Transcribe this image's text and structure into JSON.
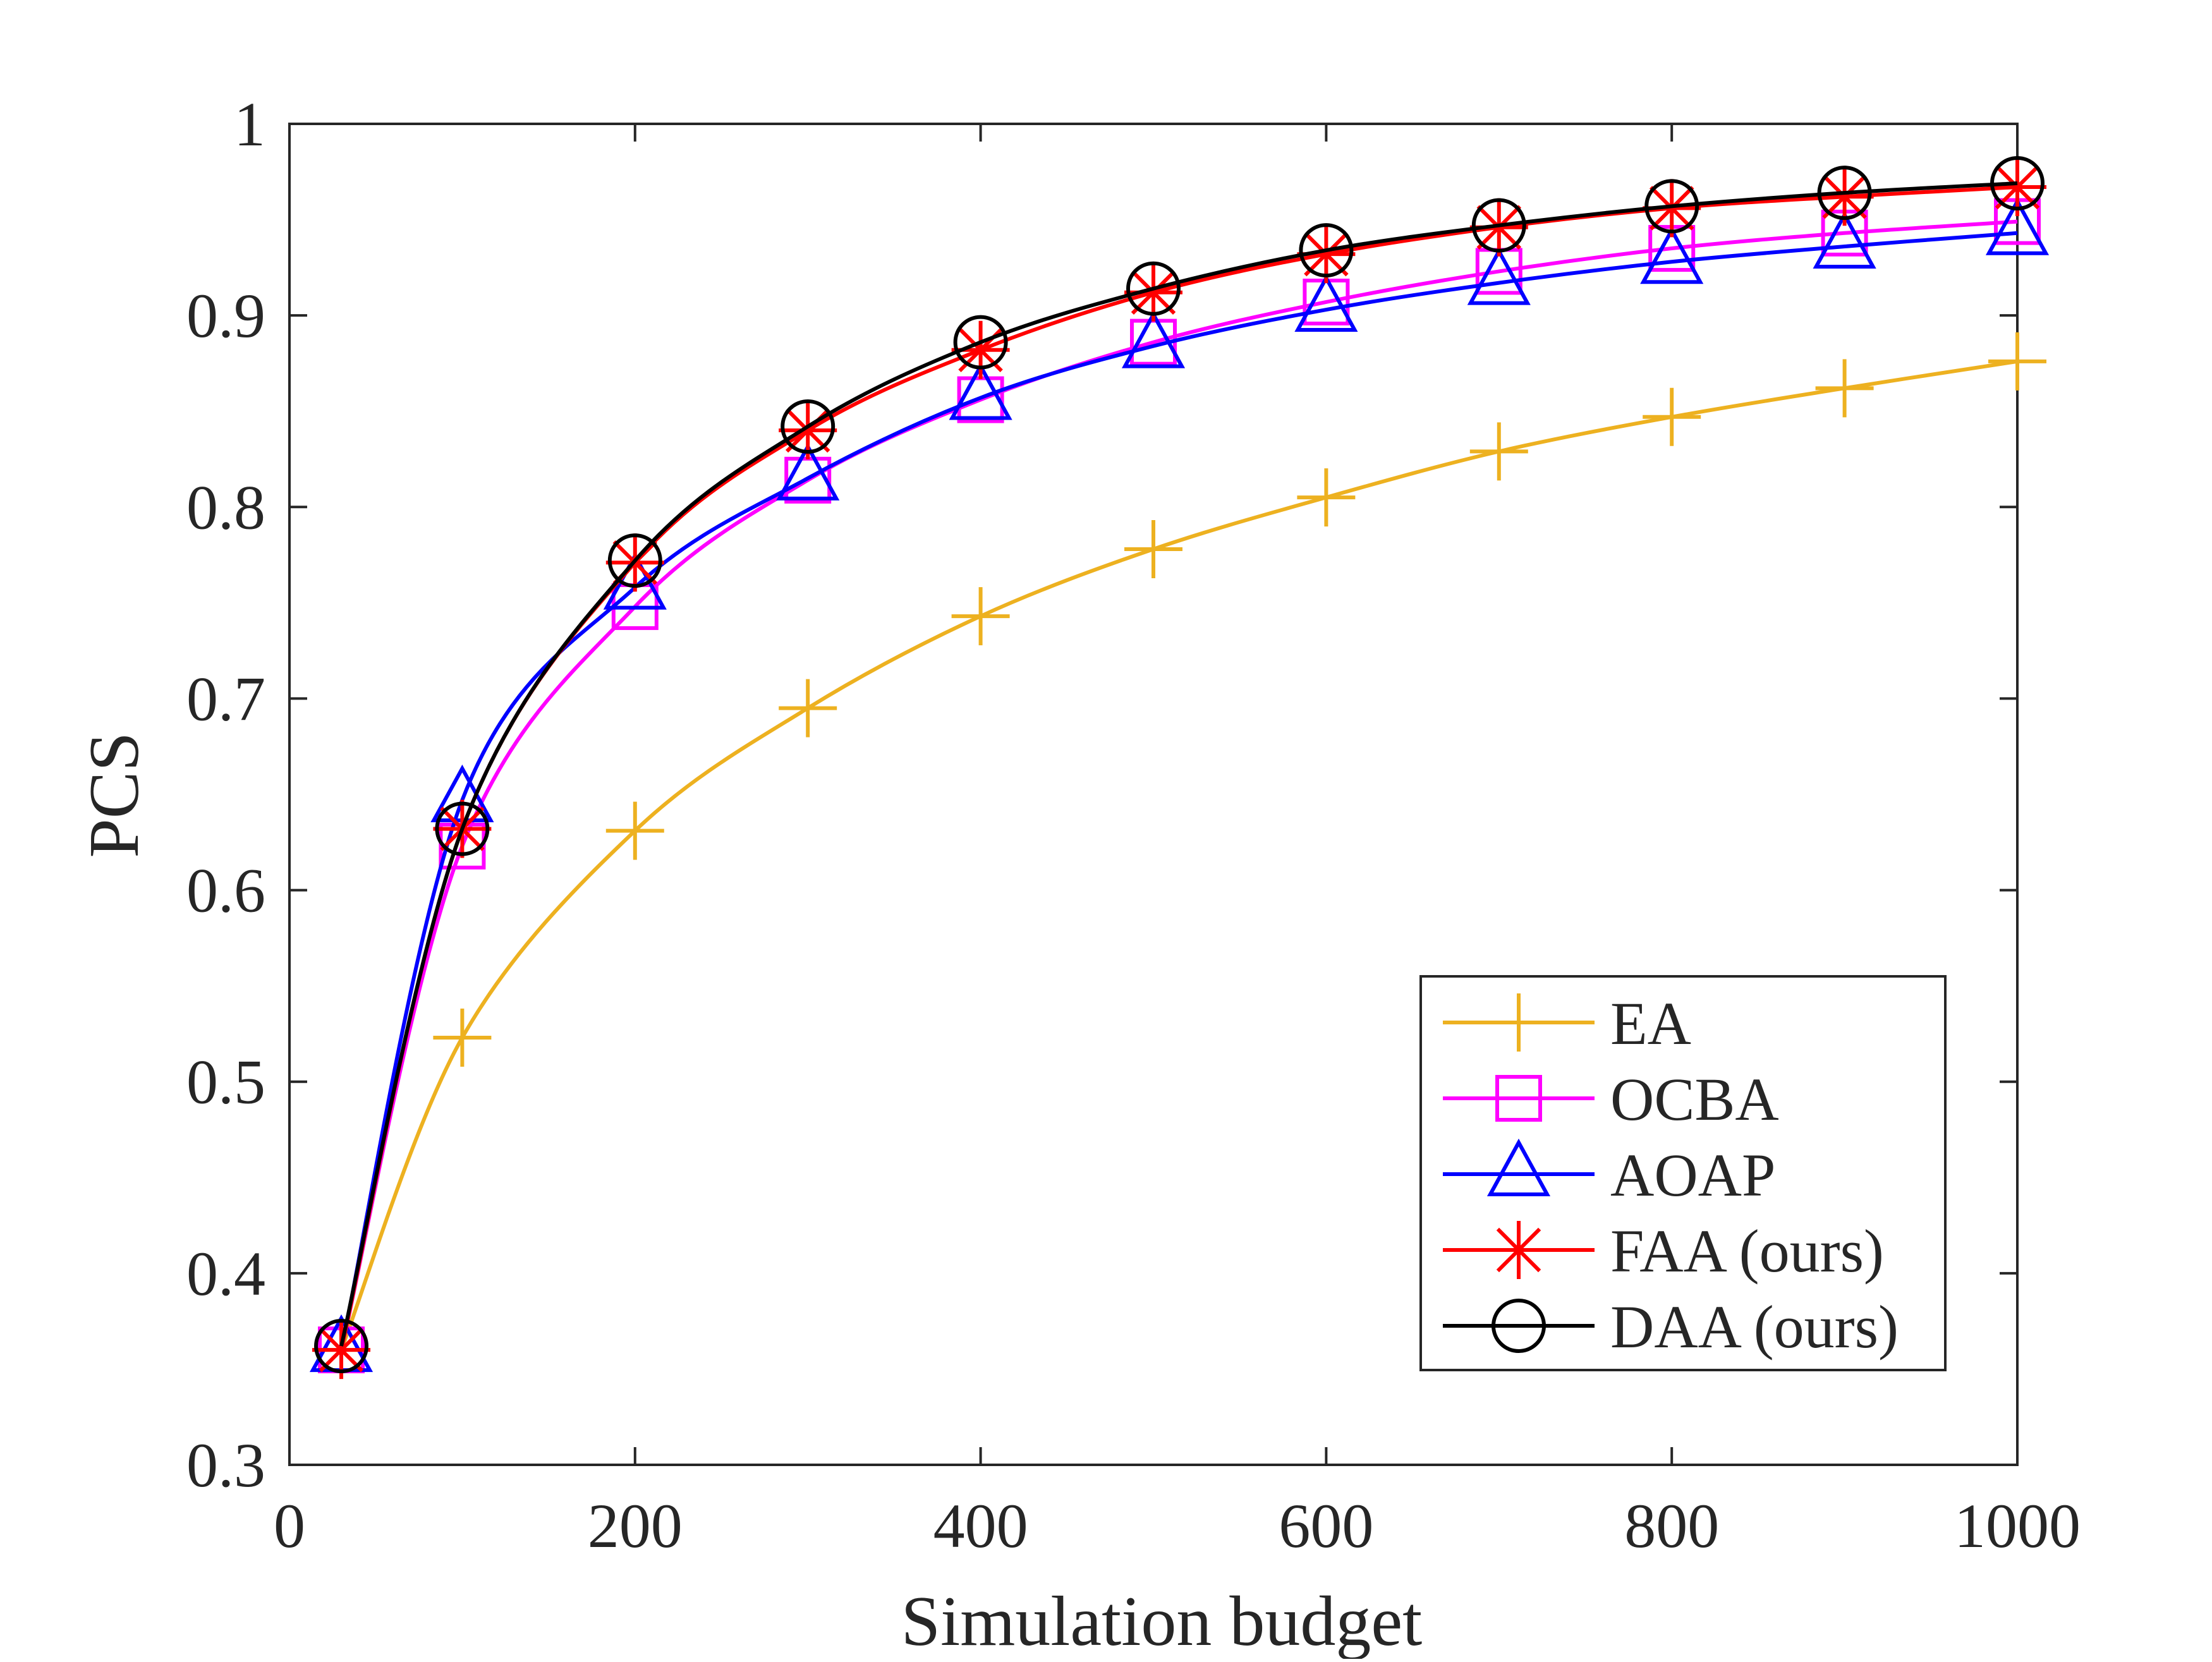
{
  "chart_data": {
    "type": "line",
    "xlabel": "Simulation budget",
    "ylabel": "PCS",
    "xlim": [
      0,
      1000
    ],
    "ylim": [
      0.3,
      1
    ],
    "x_ticks": [
      0,
      200,
      400,
      600,
      800,
      1000
    ],
    "x_tick_labels": [
      "0",
      "200",
      "400",
      "600",
      "800",
      "1000"
    ],
    "y_ticks": [
      0.3,
      0.4,
      0.5,
      0.6,
      0.7,
      0.8,
      0.9,
      1
    ],
    "y_tick_labels": [
      "0.3",
      "0.4",
      "0.5",
      "0.6",
      "0.7",
      "0.8",
      "0.9",
      "1"
    ],
    "grid": false,
    "legend_position": "bottom-right",
    "x": [
      30,
      100,
      200,
      300,
      400,
      500,
      600,
      700,
      800,
      900,
      1000
    ],
    "series": [
      {
        "name": "EA",
        "color": "#EDB120",
        "marker": "plus",
        "values": [
          0.36,
          0.523,
          0.631,
          0.695,
          0.743,
          0.778,
          0.805,
          0.829,
          0.847,
          0.862,
          0.876
        ]
      },
      {
        "name": "OCBA",
        "color": "#FF00FF",
        "marker": "square",
        "values": [
          0.36,
          0.623,
          0.748,
          0.814,
          0.856,
          0.886,
          0.907,
          0.923,
          0.935,
          0.943,
          0.949
        ]
      },
      {
        "name": "AOAP",
        "color": "#0000FF",
        "marker": "triangle",
        "values": [
          0.36,
          0.647,
          0.758,
          0.815,
          0.857,
          0.884,
          0.903,
          0.917,
          0.928,
          0.936,
          0.943
        ]
      },
      {
        "name": "FAA (ours)",
        "color": "#FF0000",
        "marker": "asterisk",
        "values": [
          0.36,
          0.632,
          0.771,
          0.84,
          0.882,
          0.912,
          0.932,
          0.946,
          0.956,
          0.962,
          0.967
        ]
      },
      {
        "name": "DAA (ours)",
        "color": "#000000",
        "marker": "circle",
        "values": [
          0.362,
          0.632,
          0.772,
          0.842,
          0.886,
          0.914,
          0.934,
          0.947,
          0.957,
          0.964,
          0.969
        ]
      }
    ]
  }
}
